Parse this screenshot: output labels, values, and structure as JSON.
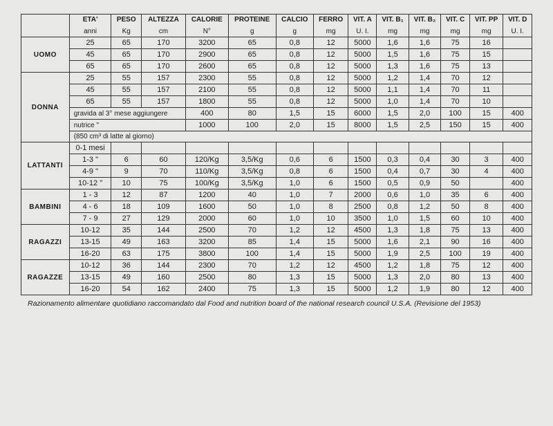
{
  "headers": [
    {
      "label": "ETA'",
      "unit": "anni"
    },
    {
      "label": "PESO",
      "unit": "Kg"
    },
    {
      "label": "ALTEZZA",
      "unit": "cm"
    },
    {
      "label": "CALORIE",
      "unit": "N°"
    },
    {
      "label": "PROTEINE",
      "unit": "g"
    },
    {
      "label": "CALCIO",
      "unit": "g"
    },
    {
      "label": "FERRO",
      "unit": "mg"
    },
    {
      "label": "VIT. A",
      "unit": "U. I."
    },
    {
      "label": "VIT. B₁",
      "unit": "mg"
    },
    {
      "label": "VIT. B₂",
      "unit": "mg"
    },
    {
      "label": "VIT. C",
      "unit": "mg"
    },
    {
      "label": "VIT. PP",
      "unit": "mg"
    },
    {
      "label": "VIT. D",
      "unit": "U. I."
    }
  ],
  "sections": [
    {
      "label": "UOMO",
      "rows": [
        [
          "25",
          "65",
          "170",
          "3200",
          "65",
          "0,8",
          "12",
          "5000",
          "1,6",
          "1,6",
          "75",
          "16",
          ""
        ],
        [
          "45",
          "65",
          "170",
          "2900",
          "65",
          "0,8",
          "12",
          "5000",
          "1,5",
          "1,6",
          "75",
          "15",
          ""
        ],
        [
          "65",
          "65",
          "170",
          "2600",
          "65",
          "0,8",
          "12",
          "5000",
          "1,3",
          "1,6",
          "75",
          "13",
          ""
        ]
      ]
    },
    {
      "label": "DONNA",
      "rows": [
        [
          "25",
          "55",
          "157",
          "2300",
          "55",
          "0,8",
          "12",
          "5000",
          "1,2",
          "1,4",
          "70",
          "12",
          ""
        ],
        [
          "45",
          "55",
          "157",
          "2100",
          "55",
          "0,8",
          "12",
          "5000",
          "1,1",
          "1,4",
          "70",
          "11",
          ""
        ],
        [
          "65",
          "55",
          "157",
          "1800",
          "55",
          "0,8",
          "12",
          "5000",
          "1,0",
          "1,4",
          "70",
          "10",
          ""
        ]
      ],
      "extra": [
        {
          "note": "gravida al 3° mese aggiungere",
          "cells": [
            "400",
            "80",
            "1,5",
            "15",
            "6000",
            "1,5",
            "2,0",
            "100",
            "15",
            "400"
          ]
        },
        {
          "note": "nutrice            \"",
          "cells": [
            "1000",
            "100",
            "2,0",
            "15",
            "8000",
            "1,5",
            "2,5",
            "150",
            "15",
            "400"
          ]
        },
        {
          "note": "(850 cm³ di latte al giorno)",
          "cells": []
        }
      ]
    },
    {
      "label": "LATTANTI",
      "rows": [
        [
          "0-1 mesi",
          "",
          "",
          "",
          "",
          "",
          "",
          "",
          "",
          "",
          "",
          "",
          ""
        ],
        [
          "1-3  \"",
          "6",
          "60",
          "120/Kg",
          "3,5/Kg",
          "0,6",
          "6",
          "1500",
          "0,3",
          "0,4",
          "30",
          "3",
          "400"
        ],
        [
          "4-9  \"",
          "9",
          "70",
          "110/Kg",
          "3,5/Kg",
          "0,8",
          "6",
          "1500",
          "0,4",
          "0,7",
          "30",
          "4",
          "400"
        ],
        [
          "10-12 \"",
          "10",
          "75",
          "100/Kg",
          "3,5/Kg",
          "1,0",
          "6",
          "1500",
          "0,5",
          "0,9",
          "50",
          "",
          "400"
        ]
      ]
    },
    {
      "label": "BAMBINI",
      "rows": [
        [
          "1 - 3",
          "12",
          "87",
          "1200",
          "40",
          "1,0",
          "7",
          "2000",
          "0,6",
          "1,0",
          "35",
          "6",
          "400"
        ],
        [
          "4 - 6",
          "18",
          "109",
          "1600",
          "50",
          "1,0",
          "8",
          "2500",
          "0,8",
          "1,2",
          "50",
          "8",
          "400"
        ],
        [
          "7 - 9",
          "27",
          "129",
          "2000",
          "60",
          "1,0",
          "10",
          "3500",
          "1,0",
          "1,5",
          "60",
          "10",
          "400"
        ]
      ]
    },
    {
      "label": "RAGAZZI",
      "rows": [
        [
          "10-12",
          "35",
          "144",
          "2500",
          "70",
          "1,2",
          "12",
          "4500",
          "1,3",
          "1,8",
          "75",
          "13",
          "400"
        ],
        [
          "13-15",
          "49",
          "163",
          "3200",
          "85",
          "1,4",
          "15",
          "5000",
          "1,6",
          "2,1",
          "90",
          "16",
          "400"
        ],
        [
          "16-20",
          "63",
          "175",
          "3800",
          "100",
          "1,4",
          "15",
          "5000",
          "1,9",
          "2,5",
          "100",
          "19",
          "400"
        ]
      ]
    },
    {
      "label": "RAGAZZE",
      "rows": [
        [
          "10-12",
          "36",
          "144",
          "2300",
          "70",
          "1,2",
          "12",
          "4500",
          "1,2",
          "1,8",
          "75",
          "12",
          "400"
        ],
        [
          "13-15",
          "49",
          "160",
          "2500",
          "80",
          "1,3",
          "15",
          "5000",
          "1,3",
          "2,0",
          "80",
          "13",
          "400"
        ],
        [
          "16-20",
          "54",
          "162",
          "2400",
          "75",
          "1,3",
          "15",
          "5000",
          "1,2",
          "1,9",
          "80",
          "12",
          "400"
        ]
      ]
    }
  ],
  "caption": "Razionamento alimentare quotidiano raccomandato dal Food and nutrition board of the national research council U.S.A. (Revisione del 1953)"
}
